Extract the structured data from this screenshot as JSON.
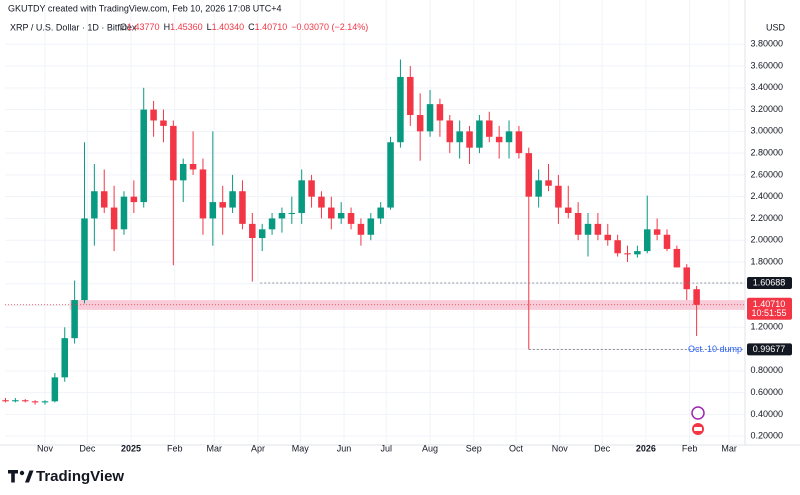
{
  "chart_data": {
    "type": "candlestick",
    "watermark": "GKUTDY created with TradingView.com, Feb 10, 2026 17:08 UTC+4",
    "symbol": "XRP / U.S. Dollar · 1D · Bitfinex",
    "ohlc_header": [
      {
        "key": "O",
        "text": "1.43770"
      },
      {
        "key": "H",
        "text": "1.45360"
      },
      {
        "key": "L",
        "text": "1.40340"
      },
      {
        "key": "C",
        "text": "1.40710"
      }
    ],
    "change": "−0.03070 (−2.14%)",
    "currency": "USD",
    "brand": "TradingView",
    "up_color": "#089981",
    "down_color": "#f23645",
    "grid": true,
    "open": [
      0.53,
      0.52,
      0.53,
      0.52,
      0.51,
      0.52,
      0.74,
      1.1,
      1.45,
      2.2,
      2.45,
      2.3,
      2.1,
      2.4,
      2.35,
      3.2,
      3.1,
      3.05,
      2.55,
      2.7,
      2.65,
      2.2,
      2.35,
      2.3,
      2.45,
      2.15,
      2.02,
      2.1,
      2.2,
      2.25,
      2.25,
      2.55,
      2.4,
      2.3,
      2.2,
      2.25,
      2.15,
      2.05,
      2.2,
      2.3,
      2.9,
      3.5,
      3.15,
      3.0,
      3.25,
      3.1,
      2.9,
      3.0,
      2.85,
      3.1,
      2.95,
      2.9,
      3.0,
      2.8,
      2.4,
      2.55,
      2.5,
      2.3,
      2.25,
      2.05,
      2.15,
      2.05,
      2.0,
      1.88,
      1.87,
      1.9,
      2.1,
      2.05,
      1.92,
      1.75,
      1.55
    ],
    "high": [
      0.55,
      0.55,
      0.54,
      0.53,
      0.53,
      0.78,
      1.2,
      1.63,
      2.9,
      2.7,
      2.65,
      2.5,
      2.45,
      2.55,
      3.4,
      3.28,
      3.2,
      3.1,
      2.75,
      3.0,
      2.75,
      3.0,
      2.5,
      2.6,
      2.55,
      2.25,
      2.15,
      2.25,
      2.3,
      2.4,
      2.65,
      2.6,
      2.45,
      2.4,
      2.35,
      2.3,
      2.2,
      2.25,
      2.35,
      2.95,
      3.66,
      3.6,
      3.35,
      3.38,
      3.3,
      3.15,
      3.1,
      3.05,
      3.15,
      3.18,
      3.05,
      3.1,
      3.05,
      2.85,
      2.65,
      2.7,
      2.6,
      2.5,
      2.35,
      2.25,
      2.25,
      2.15,
      2.05,
      1.95,
      1.95,
      2.41,
      2.2,
      2.1,
      1.95,
      1.78,
      1.58
    ],
    "low": [
      0.51,
      0.51,
      0.51,
      0.49,
      0.49,
      0.51,
      0.7,
      1.05,
      1.42,
      1.95,
      2.25,
      1.9,
      2.05,
      2.25,
      2.3,
      2.95,
      2.9,
      1.77,
      2.35,
      2.6,
      2.05,
      1.95,
      2.05,
      2.25,
      2.1,
      1.62,
      1.9,
      2.05,
      2.07,
      2.15,
      2.15,
      2.3,
      2.2,
      2.1,
      2.15,
      2.1,
      1.95,
      2.0,
      2.15,
      2.28,
      2.85,
      3.05,
      2.73,
      2.95,
      2.95,
      2.8,
      2.75,
      2.7,
      2.8,
      2.9,
      2.75,
      2.75,
      2.75,
      0.99677,
      2.3,
      2.45,
      2.15,
      2.2,
      2.0,
      1.85,
      2.0,
      1.95,
      1.85,
      1.8,
      1.84,
      1.88,
      2.0,
      1.9,
      1.75,
      1.45,
      1.12
    ],
    "close": [
      0.52,
      0.53,
      0.52,
      0.51,
      0.52,
      0.74,
      1.1,
      1.45,
      2.2,
      2.45,
      2.3,
      2.1,
      2.4,
      2.35,
      3.2,
      3.1,
      3.05,
      2.55,
      2.7,
      2.65,
      2.2,
      2.35,
      2.3,
      2.45,
      2.15,
      2.02,
      2.1,
      2.2,
      2.25,
      2.25,
      2.55,
      2.4,
      2.3,
      2.2,
      2.25,
      2.15,
      2.05,
      2.2,
      2.3,
      2.9,
      3.5,
      3.15,
      3.0,
      3.25,
      3.1,
      2.9,
      3.0,
      2.85,
      3.1,
      2.95,
      2.9,
      3.0,
      2.8,
      2.4,
      2.55,
      2.5,
      2.3,
      2.25,
      2.05,
      2.15,
      2.05,
      2.0,
      1.88,
      1.87,
      1.9,
      2.1,
      2.05,
      1.92,
      1.75,
      1.55,
      1.4071
    ],
    "xlim": [
      -0.05,
      74.9
    ],
    "xticks": [
      {
        "value": 4.0,
        "label": "Nov"
      },
      {
        "value": 8.29,
        "label": "Dec"
      },
      {
        "value": 12.71,
        "label": "2025"
      },
      {
        "value": 17.14,
        "label": "Feb"
      },
      {
        "value": 21.14,
        "label": "Mar"
      },
      {
        "value": 25.57,
        "label": "Apr"
      },
      {
        "value": 29.86,
        "label": "May"
      },
      {
        "value": 34.29,
        "label": "Jun"
      },
      {
        "value": 38.57,
        "label": "Jul"
      },
      {
        "value": 43.0,
        "label": "Aug"
      },
      {
        "value": 47.43,
        "label": "Sep"
      },
      {
        "value": 51.71,
        "label": "Oct"
      },
      {
        "value": 56.14,
        "label": "Nov"
      },
      {
        "value": 60.43,
        "label": "Dec"
      },
      {
        "value": 64.86,
        "label": "2026"
      },
      {
        "value": 69.29,
        "label": "Feb"
      },
      {
        "value": 73.29,
        "label": "Mar"
      }
    ],
    "ylim": [
      0.16,
      4.0
    ],
    "yticks": [
      {
        "value": 0.2,
        "label": "0.20000"
      },
      {
        "value": 0.4,
        "label": "0.40000"
      },
      {
        "value": 0.6,
        "label": "0.60000"
      },
      {
        "value": 0.8,
        "label": "0.80000"
      },
      {
        "value": 1.0,
        "label": "1.00000"
      },
      {
        "value": 1.2,
        "label": "1.20000"
      },
      {
        "value": 1.4,
        "label": "1.40000"
      },
      {
        "value": 1.6,
        "label": "1.60000"
      },
      {
        "value": 1.8,
        "label": "1.80000"
      },
      {
        "value": 2.0,
        "label": "2.00000"
      },
      {
        "value": 2.2,
        "label": "2.20000"
      },
      {
        "value": 2.4,
        "label": "2.40000"
      },
      {
        "value": 2.6,
        "label": "2.60000"
      },
      {
        "value": 2.8,
        "label": "2.80000"
      },
      {
        "value": 3.0,
        "label": "3.00000"
      },
      {
        "value": 3.2,
        "label": "3.20000"
      },
      {
        "value": 3.4,
        "label": "3.40000"
      },
      {
        "value": 3.6,
        "label": "3.60000"
      },
      {
        "value": 3.8,
        "label": "3.80000"
      }
    ],
    "zone": [
      1.36,
      1.45
    ],
    "levels": [
      {
        "value": 1.60688,
        "label": "1.60688",
        "from": 25.8
      },
      {
        "value": 0.99677,
        "label": "0.99677",
        "from": 53
      }
    ],
    "annotation": "Oct. 10 dump",
    "last_price": {
      "value": 1.4071,
      "label": "1.40710"
    },
    "countdown": "10:51:55"
  }
}
